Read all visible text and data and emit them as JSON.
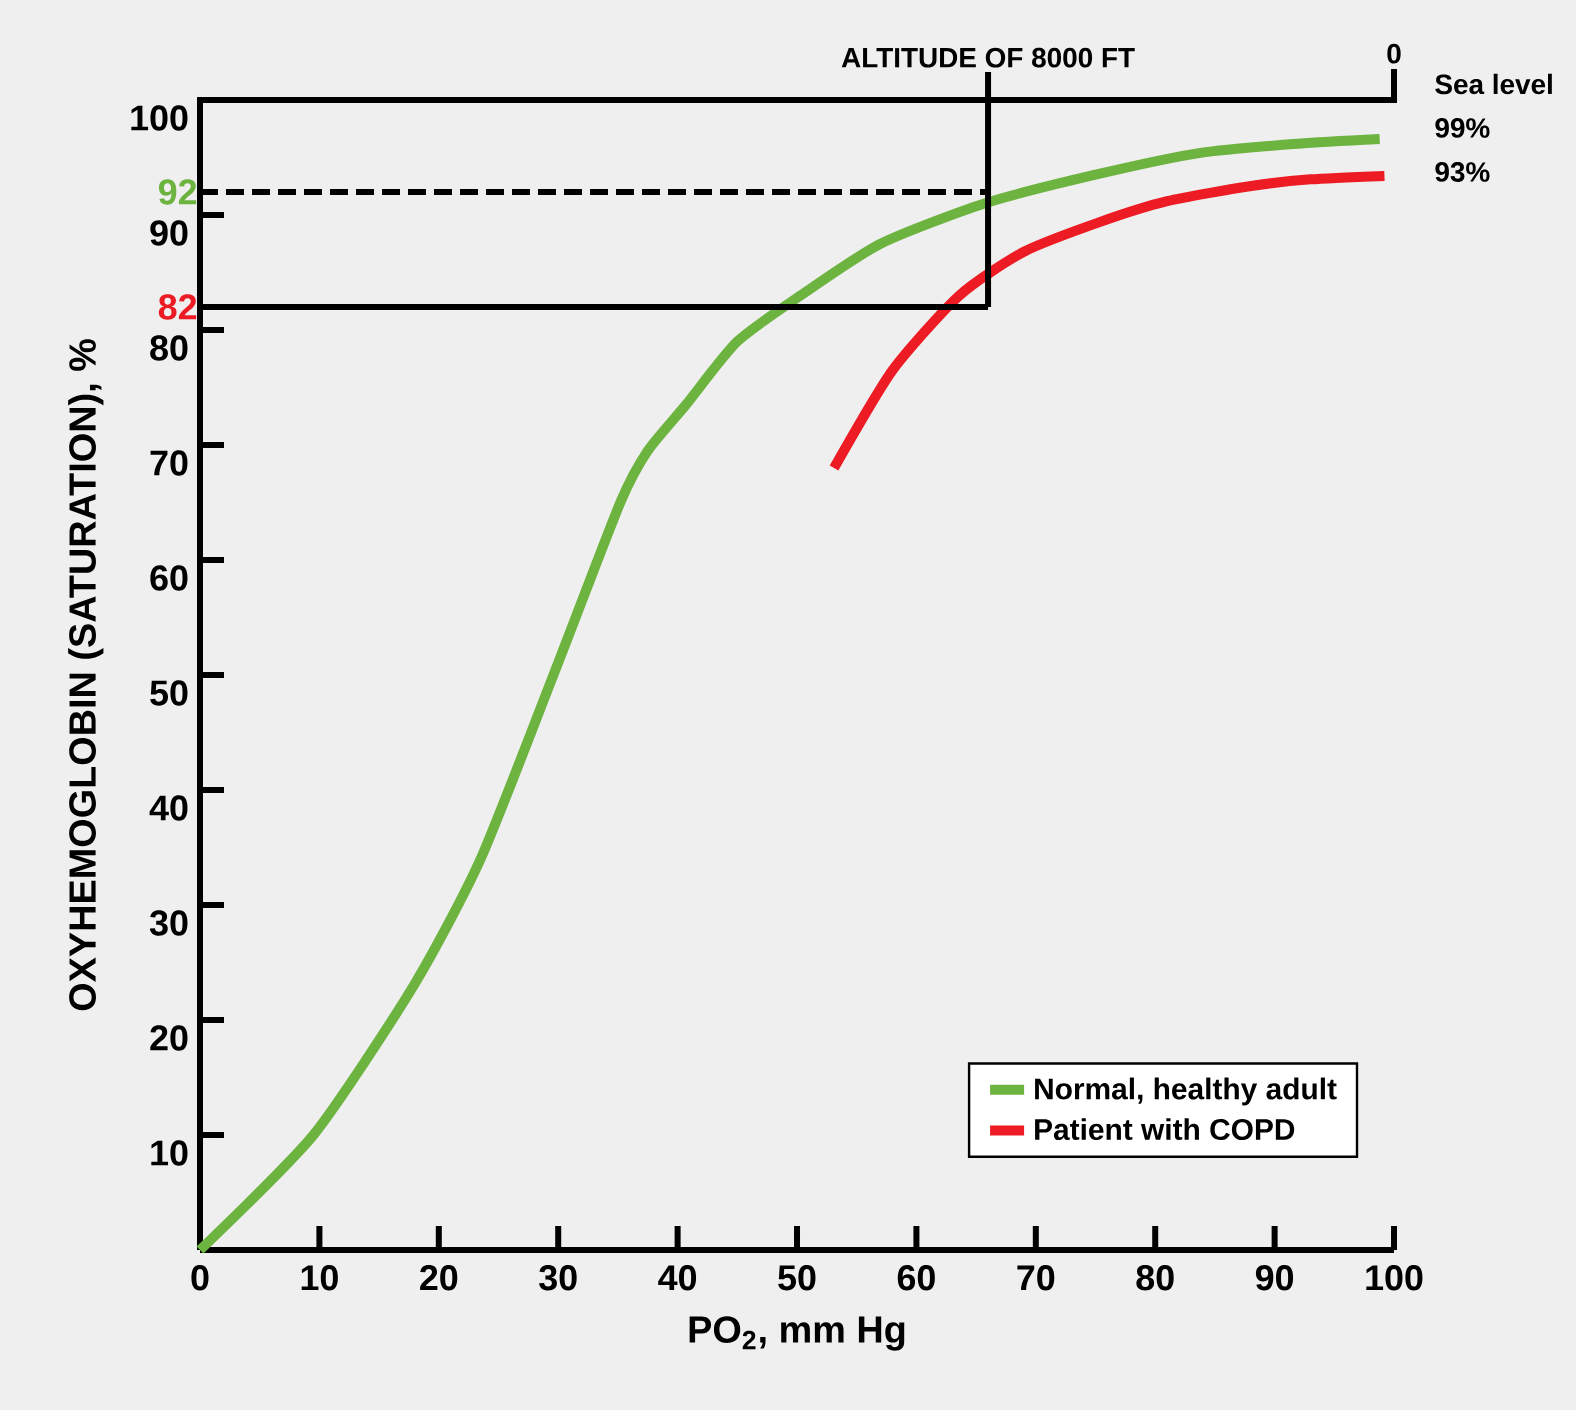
{
  "chart_data": {
    "type": "line",
    "xlabel": "PO$_{2}$, mm Hg",
    "ylabel": "OXYHEMOGLOBIN (SATURATION), %",
    "xlim": [
      0,
      100
    ],
    "ylim": [
      0,
      100
    ],
    "xticks": [
      0,
      10,
      20,
      30,
      40,
      50,
      60,
      70,
      80,
      90,
      100
    ],
    "yticks": [
      10,
      20,
      30,
      40,
      50,
      60,
      70,
      80,
      90,
      100
    ],
    "series": [
      {
        "name": "Normal, healthy adult",
        "color": "#6db33f",
        "x": [
          0,
          9.5,
          17.9,
          23.5,
          29.6,
          35.2,
          37.5,
          40.7,
          45,
          50.3,
          57,
          65.7,
          75,
          83.8,
          92,
          98.8
        ],
        "values": [
          0,
          10,
          23,
          34,
          50,
          65,
          69.5,
          73.5,
          79,
          83,
          87.5,
          91,
          93.5,
          95.4,
          96.2,
          96.6
        ]
      },
      {
        "name": "Patient with COPD",
        "color": "#ed1c24",
        "x": [
          53.1,
          58,
          63.6,
          69,
          75.4,
          81,
          87.9,
          93,
          99.2
        ],
        "values": [
          68,
          76.5,
          83,
          86.8,
          89.4,
          91.2,
          92.5,
          93.1,
          93.4
        ]
      }
    ],
    "ref_lines": [
      {
        "axis": "y",
        "value": 92,
        "label": "92",
        "line_style": "dashed"
      },
      {
        "axis": "y",
        "value": 82,
        "label": "82",
        "line_style": "solid"
      },
      {
        "axis": "x",
        "value": 66,
        "label": "ALTITUDE OF 8000 FT",
        "line_style": "solid"
      }
    ],
    "annotations": [
      "0",
      "Sea level",
      "99%",
      "93%"
    ],
    "legend": "bottom right"
  }
}
